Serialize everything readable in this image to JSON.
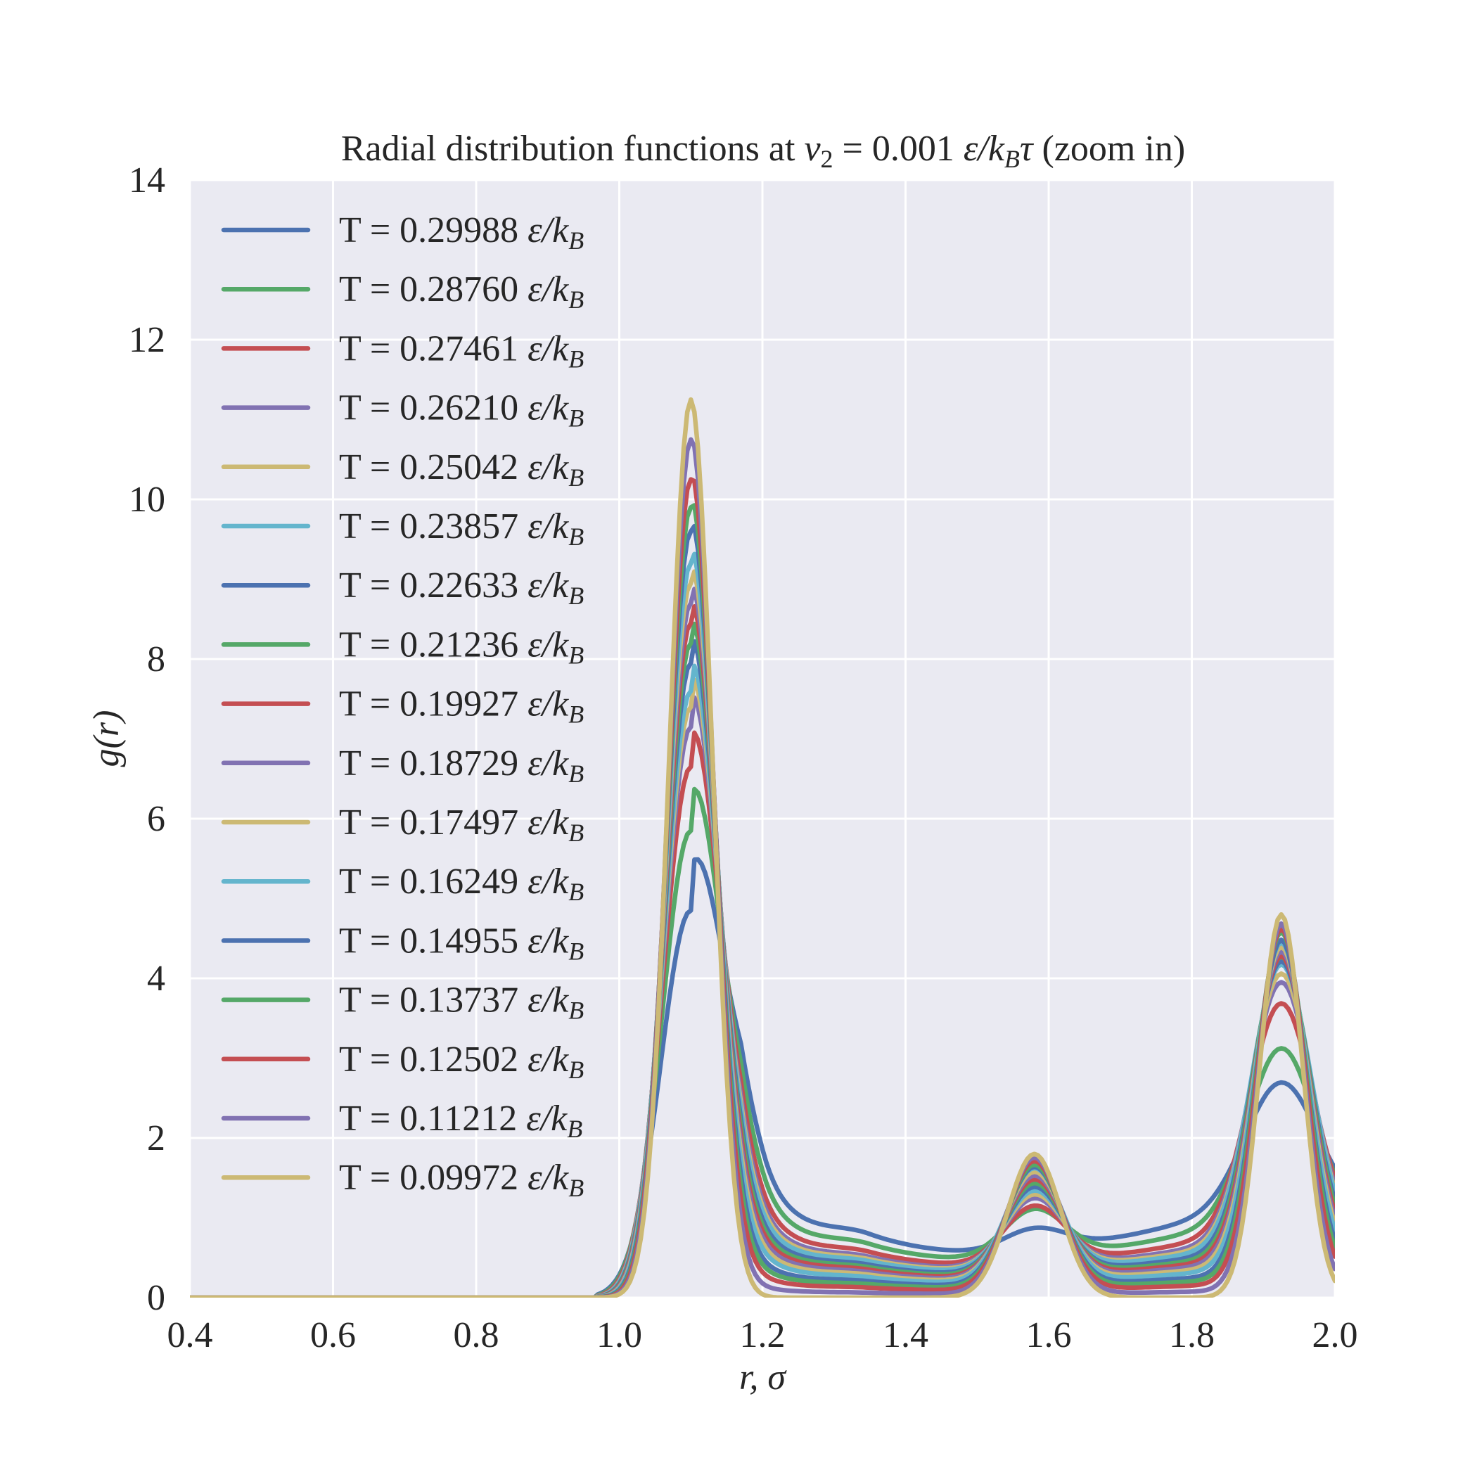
{
  "chart_data": {
    "type": "line",
    "title": "Radial distribution functions at v₂ = 0.001 ε/k_Bτ (zoom in)",
    "title_parts": {
      "prefix": "Radial distribution functions at ",
      "var": "v",
      "var_sub": "2",
      "eq_value": " = 0.001 ",
      "unit_a": "ε/k",
      "unit_sub": "B",
      "unit_b": "τ",
      "suffix": " (zoom in)"
    },
    "xlabel": "r, σ",
    "ylabel": "g(r)",
    "xlim": [
      0.4,
      2.0
    ],
    "ylim": [
      0,
      14
    ],
    "xticks": [
      "0.4",
      "0.6",
      "0.8",
      "1.0",
      "1.2",
      "1.4",
      "1.6",
      "1.8",
      "2.0"
    ],
    "yticks": [
      "0",
      "2",
      "4",
      "6",
      "8",
      "10",
      "12",
      "14"
    ],
    "grid": true,
    "legend_position": "upper-left",
    "legend_unit": "ε/k",
    "legend_unit_sub": "B",
    "background": "#EAEAF2",
    "peaks": {
      "first": 1.1,
      "second": 1.58,
      "third": 1.925
    },
    "series": [
      {
        "name": "T = 0.29988",
        "color": "#4C72B0",
        "p1": 4.85,
        "p2": 0.8,
        "p3": 1.6
      },
      {
        "name": "T = 0.28760",
        "color": "#55A868",
        "p1": 5.85,
        "p2": 1.05,
        "p3": 2.2
      },
      {
        "name": "T = 0.27461",
        "color": "#C44E52",
        "p1": 6.65,
        "p2": 1.1,
        "p3": 2.9
      },
      {
        "name": "T = 0.26210",
        "color": "#8172B2",
        "p1": 7.15,
        "p2": 1.2,
        "p3": 3.25
      },
      {
        "name": "T = 0.25042",
        "color": "#CCB974",
        "p1": 7.4,
        "p2": 1.25,
        "p3": 3.4
      },
      {
        "name": "T = 0.23857",
        "color": "#64B5CD",
        "p1": 7.6,
        "p2": 1.3,
        "p3": 3.55
      },
      {
        "name": "T = 0.22633",
        "color": "#4C72B0",
        "p1": 7.95,
        "p2": 1.35,
        "p3": 3.65
      },
      {
        "name": "T = 0.21236",
        "color": "#55A868",
        "p1": 8.2,
        "p2": 1.4,
        "p3": 3.75
      },
      {
        "name": "T = 0.19927",
        "color": "#C44E52",
        "p1": 8.45,
        "p2": 1.45,
        "p3": 3.8
      },
      {
        "name": "T = 0.18729",
        "color": "#8172B2",
        "p1": 8.7,
        "p2": 1.5,
        "p3": 3.9
      },
      {
        "name": "T = 0.17497",
        "color": "#CCB974",
        "p1": 8.95,
        "p2": 1.55,
        "p3": 4.0
      },
      {
        "name": "T = 0.16249",
        "color": "#64B5CD",
        "p1": 9.2,
        "p2": 1.6,
        "p3": 4.1
      },
      {
        "name": "T = 0.14955",
        "color": "#4C72B0",
        "p1": 9.6,
        "p2": 1.62,
        "p3": 4.2
      },
      {
        "name": "T = 0.13737",
        "color": "#55A868",
        "p1": 9.9,
        "p2": 1.65,
        "p3": 4.35
      },
      {
        "name": "T = 0.12502",
        "color": "#C44E52",
        "p1": 10.25,
        "p2": 1.7,
        "p3": 4.45
      },
      {
        "name": "T = 0.11212",
        "color": "#8172B2",
        "p1": 10.75,
        "p2": 1.75,
        "p3": 4.6
      },
      {
        "name": "T = 0.09972",
        "color": "#CCB974",
        "p1": 11.25,
        "p2": 1.8,
        "p3": 4.8
      }
    ]
  }
}
